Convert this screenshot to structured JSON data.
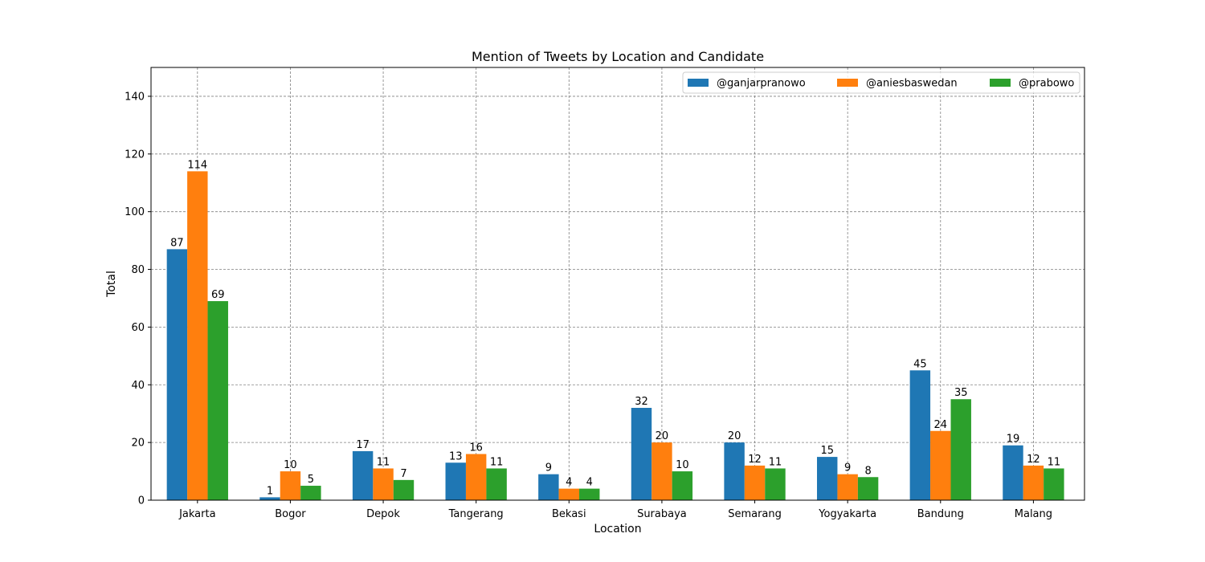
{
  "chart_data": {
    "type": "bar",
    "title": "Mention of Tweets by Location and Candidate",
    "xlabel": "Location",
    "ylabel": "Total",
    "ylim": [
      0,
      150
    ],
    "yticks": [
      0,
      20,
      40,
      60,
      80,
      100,
      120,
      140
    ],
    "grid": true,
    "legend_position": "top-right",
    "categories": [
      "Jakarta",
      "Bogor",
      "Depok",
      "Tangerang",
      "Bekasi",
      "Surabaya",
      "Semarang",
      "Yogyakarta",
      "Bandung",
      "Malang"
    ],
    "series": [
      {
        "name": "@ganjarpranowo",
        "color": "#1f77b4",
        "values": [
          87,
          1,
          17,
          13,
          9,
          32,
          20,
          15,
          45,
          19
        ]
      },
      {
        "name": "@aniesbaswedan",
        "color": "#ff7f0e",
        "values": [
          114,
          10,
          11,
          16,
          4,
          20,
          12,
          9,
          24,
          12
        ]
      },
      {
        "name": "@prabowo",
        "color": "#2ca02c",
        "values": [
          69,
          5,
          7,
          11,
          4,
          10,
          11,
          8,
          35,
          11
        ]
      }
    ]
  }
}
